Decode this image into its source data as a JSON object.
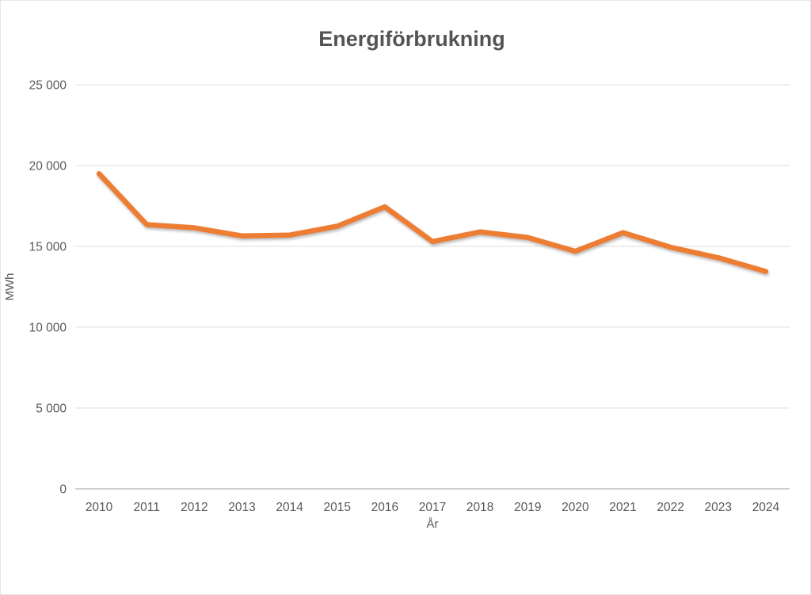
{
  "chart_data": {
    "type": "line",
    "title": "Energiförbrukning",
    "xlabel": "År",
    "ylabel": "MWh",
    "categories": [
      "2010",
      "2011",
      "2012",
      "2013",
      "2014",
      "2015",
      "2016",
      "2017",
      "2018",
      "2019",
      "2020",
      "2021",
      "2022",
      "2023",
      "2024"
    ],
    "series": [
      {
        "name": "Energiförbrukning",
        "values": [
          19500,
          16350,
          16150,
          15650,
          15700,
          16250,
          17450,
          15300,
          15900,
          15550,
          14700,
          15850,
          14950,
          14300,
          13450
        ]
      }
    ],
    "ylim": [
      0,
      25000
    ],
    "y_ticks": [
      0,
      5000,
      10000,
      15000,
      20000,
      25000
    ],
    "y_tick_labels": [
      "0",
      "5 000",
      "10 000",
      "15 000",
      "20 000",
      "25 000"
    ],
    "grid": true,
    "legend": false,
    "line_color": "#ED7D31",
    "line_width": 6.5,
    "gridline_color": "#DCDCDC",
    "axis_line_color": "#BFBFBF",
    "text_color": "#595959",
    "title_color": "#545454",
    "frame_border_color": "#E6E6E6"
  }
}
